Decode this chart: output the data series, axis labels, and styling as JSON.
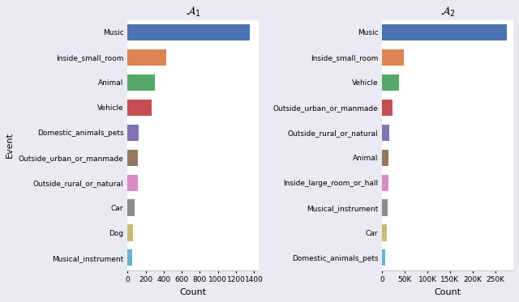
{
  "plot1": {
    "title": "$\\mathcal{A}_1$",
    "categories": [
      "Music",
      "Inside_small_room",
      "Animal",
      "Vehicle",
      "Domestic_animals_pets",
      "Outside_urban_or_manmade",
      "Outside_rural_or_natural",
      "Car",
      "Dog",
      "Musical_instrument"
    ],
    "values": [
      1350,
      430,
      300,
      265,
      120,
      115,
      110,
      75,
      65,
      55
    ],
    "colors": [
      "#4c72b0",
      "#dd8452",
      "#55a868",
      "#c44e52",
      "#8172b2",
      "#937860",
      "#da8bc3",
      "#8c8c8c",
      "#ccb974",
      "#64b5cd"
    ],
    "xlabel": "Count",
    "ylabel": "Event",
    "xlim": [
      0,
      1450
    ],
    "xticks": [
      0,
      200,
      400,
      600,
      800,
      1000,
      1200,
      1400
    ]
  },
  "plot2": {
    "title": "$\\mathcal{A}_2$",
    "categories": [
      "Music",
      "Inside_small_room",
      "Vehicle",
      "Outside_urban_or_manmade",
      "Outside_rural_or_natural",
      "Animal",
      "Inside_large_room_or_hall",
      "Musical_instrument",
      "Car",
      "Domestic_animals_pets"
    ],
    "values": [
      275000,
      47000,
      38000,
      22000,
      16000,
      14000,
      13000,
      12000,
      10000,
      7000
    ],
    "colors": [
      "#4c72b0",
      "#dd8452",
      "#55a868",
      "#c44e52",
      "#8172b2",
      "#937860",
      "#da8bc3",
      "#8c8c8c",
      "#ccb974",
      "#64b5cd"
    ],
    "xlabel": "Count",
    "ylabel": "",
    "xlim": [
      0,
      290000
    ],
    "xticks": [
      0,
      50000,
      100000,
      150000,
      200000,
      250000
    ]
  },
  "bg_color": "#eaeaf2",
  "bar_bg": "#ffffff",
  "grid_color": "#ffffff",
  "spine_color": "#ffffff",
  "tick_label_size": 6.5,
  "xlabel_size": 8,
  "ylabel_size": 8,
  "title_size": 10,
  "bar_height": 0.65
}
